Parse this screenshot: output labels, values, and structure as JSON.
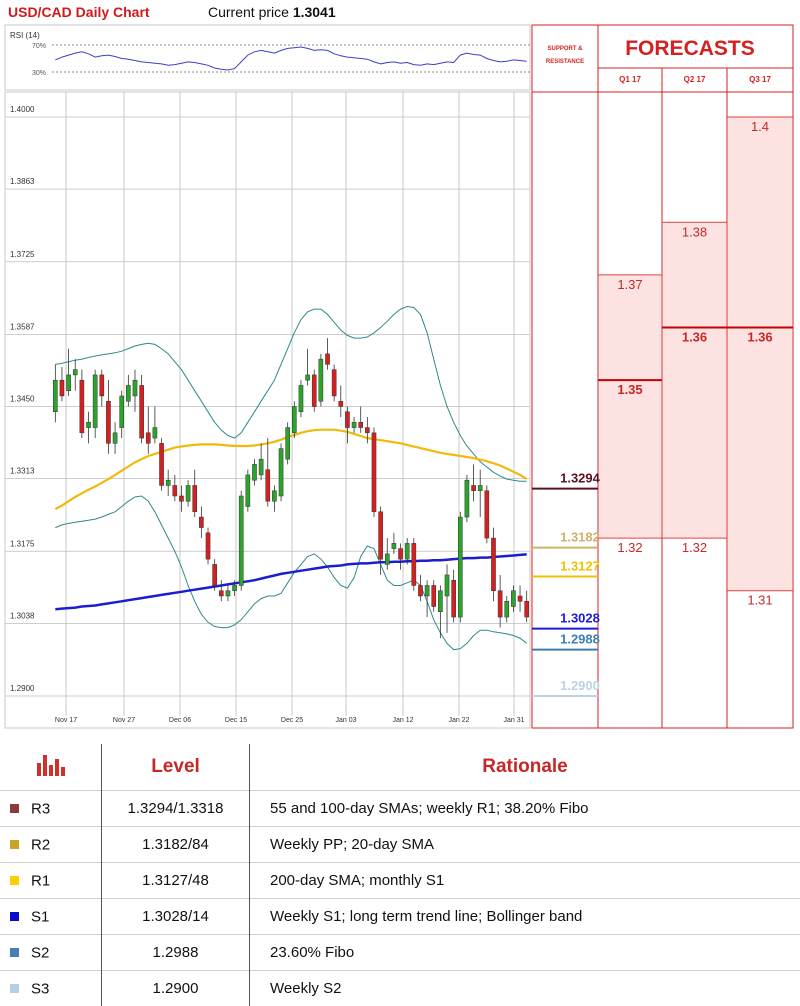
{
  "header": {
    "title": "USD/CAD Daily Chart",
    "current_label": "Current price",
    "current_value": "1.3041"
  },
  "rsi": {
    "label": "RSI (14)",
    "tick_top": "70%",
    "tick_bottom": "30%"
  },
  "forecast_panel": {
    "sr_label": "SUPPORT & RESISTANCE",
    "title": "FORECASTS",
    "quarters": [
      "Q1 17",
      "Q2 17",
      "Q3 17"
    ]
  },
  "chart_data": {
    "type": "candlestick",
    "title": "USD/CAD Daily Chart",
    "y_ticks": [
      "1.4000",
      "1.3863",
      "1.3725",
      "1.3587",
      "1.3450",
      "1.3313",
      "1.3175",
      "1.3038",
      "1.2900"
    ],
    "ylim": [
      1.285,
      1.4
    ],
    "x_ticks": [
      "Nov 17",
      "Nov 27",
      "Dec 06",
      "Dec 15",
      "Dec 25",
      "Jan 03",
      "Jan 12",
      "Jan 22",
      "Jan 31"
    ],
    "grid": true,
    "candles": [
      {
        "o": 1.344,
        "h": 1.353,
        "l": 1.342,
        "c": 1.35
      },
      {
        "o": 1.35,
        "h": 1.3525,
        "l": 1.346,
        "c": 1.347
      },
      {
        "o": 1.348,
        "h": 1.356,
        "l": 1.347,
        "c": 1.351
      },
      {
        "o": 1.351,
        "h": 1.354,
        "l": 1.348,
        "c": 1.352
      },
      {
        "o": 1.35,
        "h": 1.352,
        "l": 1.339,
        "c": 1.34
      },
      {
        "o": 1.341,
        "h": 1.344,
        "l": 1.338,
        "c": 1.342
      },
      {
        "o": 1.341,
        "h": 1.352,
        "l": 1.339,
        "c": 1.351
      },
      {
        "o": 1.351,
        "h": 1.352,
        "l": 1.345,
        "c": 1.347
      },
      {
        "o": 1.346,
        "h": 1.35,
        "l": 1.336,
        "c": 1.338
      },
      {
        "o": 1.338,
        "h": 1.342,
        "l": 1.336,
        "c": 1.34
      },
      {
        "o": 1.341,
        "h": 1.348,
        "l": 1.339,
        "c": 1.347
      },
      {
        "o": 1.346,
        "h": 1.351,
        "l": 1.345,
        "c": 1.349
      },
      {
        "o": 1.347,
        "h": 1.352,
        "l": 1.344,
        "c": 1.35
      },
      {
        "o": 1.349,
        "h": 1.351,
        "l": 1.338,
        "c": 1.339
      },
      {
        "o": 1.34,
        "h": 1.345,
        "l": 1.336,
        "c": 1.338
      },
      {
        "o": 1.339,
        "h": 1.345,
        "l": 1.338,
        "c": 1.341
      },
      {
        "o": 1.338,
        "h": 1.339,
        "l": 1.329,
        "c": 1.33
      },
      {
        "o": 1.33,
        "h": 1.333,
        "l": 1.328,
        "c": 1.331
      },
      {
        "o": 1.33,
        "h": 1.332,
        "l": 1.327,
        "c": 1.328
      },
      {
        "o": 1.328,
        "h": 1.33,
        "l": 1.325,
        "c": 1.327
      },
      {
        "o": 1.327,
        "h": 1.331,
        "l": 1.326,
        "c": 1.33
      },
      {
        "o": 1.33,
        "h": 1.333,
        "l": 1.324,
        "c": 1.325
      },
      {
        "o": 1.324,
        "h": 1.326,
        "l": 1.32,
        "c": 1.322
      },
      {
        "o": 1.321,
        "h": 1.322,
        "l": 1.315,
        "c": 1.316
      },
      {
        "o": 1.315,
        "h": 1.316,
        "l": 1.31,
        "c": 1.311
      },
      {
        "o": 1.31,
        "h": 1.312,
        "l": 1.308,
        "c": 1.309
      },
      {
        "o": 1.309,
        "h": 1.311,
        "l": 1.308,
        "c": 1.31
      },
      {
        "o": 1.31,
        "h": 1.312,
        "l": 1.309,
        "c": 1.311
      },
      {
        "o": 1.311,
        "h": 1.329,
        "l": 1.31,
        "c": 1.328
      },
      {
        "o": 1.326,
        "h": 1.333,
        "l": 1.325,
        "c": 1.332
      },
      {
        "o": 1.331,
        "h": 1.335,
        "l": 1.33,
        "c": 1.334
      },
      {
        "o": 1.332,
        "h": 1.338,
        "l": 1.331,
        "c": 1.335
      },
      {
        "o": 1.333,
        "h": 1.339,
        "l": 1.326,
        "c": 1.327
      },
      {
        "o": 1.327,
        "h": 1.33,
        "l": 1.325,
        "c": 1.329
      },
      {
        "o": 1.328,
        "h": 1.338,
        "l": 1.327,
        "c": 1.337
      },
      {
        "o": 1.335,
        "h": 1.342,
        "l": 1.334,
        "c": 1.341
      },
      {
        "o": 1.34,
        "h": 1.346,
        "l": 1.339,
        "c": 1.345
      },
      {
        "o": 1.344,
        "h": 1.35,
        "l": 1.343,
        "c": 1.349
      },
      {
        "o": 1.35,
        "h": 1.356,
        "l": 1.349,
        "c": 1.351
      },
      {
        "o": 1.351,
        "h": 1.352,
        "l": 1.344,
        "c": 1.345
      },
      {
        "o": 1.346,
        "h": 1.355,
        "l": 1.345,
        "c": 1.354
      },
      {
        "o": 1.355,
        "h": 1.358,
        "l": 1.352,
        "c": 1.353
      },
      {
        "o": 1.352,
        "h": 1.353,
        "l": 1.346,
        "c": 1.347
      },
      {
        "o": 1.346,
        "h": 1.349,
        "l": 1.343,
        "c": 1.345
      },
      {
        "o": 1.344,
        "h": 1.345,
        "l": 1.338,
        "c": 1.341
      },
      {
        "o": 1.341,
        "h": 1.343,
        "l": 1.34,
        "c": 1.342
      },
      {
        "o": 1.342,
        "h": 1.345,
        "l": 1.34,
        "c": 1.341
      },
      {
        "o": 1.341,
        "h": 1.343,
        "l": 1.338,
        "c": 1.34
      },
      {
        "o": 1.34,
        "h": 1.341,
        "l": 1.324,
        "c": 1.325
      },
      {
        "o": 1.325,
        "h": 1.326,
        "l": 1.313,
        "c": 1.316
      },
      {
        "o": 1.315,
        "h": 1.32,
        "l": 1.314,
        "c": 1.317
      },
      {
        "o": 1.318,
        "h": 1.321,
        "l": 1.317,
        "c": 1.319
      },
      {
        "o": 1.318,
        "h": 1.319,
        "l": 1.314,
        "c": 1.316
      },
      {
        "o": 1.316,
        "h": 1.32,
        "l": 1.315,
        "c": 1.319
      },
      {
        "o": 1.319,
        "h": 1.32,
        "l": 1.31,
        "c": 1.311
      },
      {
        "o": 1.311,
        "h": 1.313,
        "l": 1.308,
        "c": 1.309
      },
      {
        "o": 1.309,
        "h": 1.312,
        "l": 1.305,
        "c": 1.311
      },
      {
        "o": 1.311,
        "h": 1.312,
        "l": 1.306,
        "c": 1.307
      },
      {
        "o": 1.306,
        "h": 1.311,
        "l": 1.301,
        "c": 1.31
      },
      {
        "o": 1.309,
        "h": 1.315,
        "l": 1.302,
        "c": 1.313
      },
      {
        "o": 1.312,
        "h": 1.314,
        "l": 1.304,
        "c": 1.305
      },
      {
        "o": 1.305,
        "h": 1.325,
        "l": 1.304,
        "c": 1.324
      },
      {
        "o": 1.324,
        "h": 1.332,
        "l": 1.323,
        "c": 1.331
      },
      {
        "o": 1.33,
        "h": 1.334,
        "l": 1.327,
        "c": 1.329
      },
      {
        "o": 1.329,
        "h": 1.333,
        "l": 1.324,
        "c": 1.33
      },
      {
        "o": 1.329,
        "h": 1.33,
        "l": 1.319,
        "c": 1.32
      },
      {
        "o": 1.32,
        "h": 1.322,
        "l": 1.308,
        "c": 1.31
      },
      {
        "o": 1.31,
        "h": 1.313,
        "l": 1.303,
        "c": 1.305
      },
      {
        "o": 1.305,
        "h": 1.309,
        "l": 1.304,
        "c": 1.308
      },
      {
        "o": 1.307,
        "h": 1.311,
        "l": 1.306,
        "c": 1.31
      },
      {
        "o": 1.309,
        "h": 1.311,
        "l": 1.306,
        "c": 1.308
      },
      {
        "o": 1.308,
        "h": 1.31,
        "l": 1.304,
        "c": 1.305
      }
    ],
    "sma_55_100": [
      1.3255,
      1.3262,
      1.327,
      1.3278,
      1.3285,
      1.3292,
      1.3298,
      1.3305,
      1.3312,
      1.332,
      1.3328,
      1.3336,
      1.3344,
      1.335,
      1.3356,
      1.336,
      1.3364,
      1.3368,
      1.3372,
      1.3374,
      1.3376,
      1.3377,
      1.3378,
      1.3378,
      1.3378,
      1.3377,
      1.3376,
      1.3375,
      1.3375,
      1.3375,
      1.3376,
      1.3378,
      1.338,
      1.3383,
      1.3387,
      1.3392,
      1.3396,
      1.34,
      1.3403,
      1.3405,
      1.3406,
      1.3406,
      1.3406,
      1.3404,
      1.3402,
      1.3398,
      1.3394,
      1.339,
      1.3388,
      1.3386,
      1.3384,
      1.3382,
      1.338,
      1.3377,
      1.3374,
      1.3371,
      1.3368,
      1.3365,
      1.3362,
      1.336,
      1.3358,
      1.3356,
      1.3354,
      1.3352,
      1.3349,
      1.3346,
      1.3342,
      1.3338,
      1.3332,
      1.3326,
      1.332,
      1.3312
    ],
    "sma_200": [
      1.3065,
      1.3066,
      1.3067,
      1.3068,
      1.307,
      1.3071,
      1.3072,
      1.3074,
      1.3076,
      1.3078,
      1.308,
      1.3082,
      1.3084,
      1.3086,
      1.3088,
      1.309,
      1.3092,
      1.3094,
      1.3096,
      1.3098,
      1.31,
      1.3102,
      1.3104,
      1.3106,
      1.3108,
      1.311,
      1.3112,
      1.3114,
      1.3116,
      1.3118,
      1.312,
      1.3123,
      1.3126,
      1.3129,
      1.3132,
      1.3134,
      1.3136,
      1.3138,
      1.314,
      1.3142,
      1.3144,
      1.3146,
      1.3147,
      1.3148,
      1.315,
      1.3151,
      1.3152,
      1.3152,
      1.3153,
      1.3154,
      1.3154,
      1.3155,
      1.3155,
      1.3156,
      1.3156,
      1.3157,
      1.3157,
      1.3158,
      1.3158,
      1.3159,
      1.316,
      1.3161,
      1.3162,
      1.3162,
      1.3163,
      1.3163,
      1.3164,
      1.3165,
      1.3166,
      1.3167,
      1.3168,
      1.3169
    ],
    "bb_upper": [
      1.353,
      1.3532,
      1.3535,
      1.3538,
      1.354,
      1.3543,
      1.3546,
      1.3548,
      1.355,
      1.3552,
      1.3555,
      1.356,
      1.3565,
      1.3568,
      1.357,
      1.3568,
      1.356,
      1.355,
      1.3535,
      1.352,
      1.35,
      1.348,
      1.346,
      1.344,
      1.342,
      1.3405,
      1.3395,
      1.339,
      1.34,
      1.342,
      1.344,
      1.346,
      1.348,
      1.35,
      1.353,
      1.356,
      1.359,
      1.3615,
      1.363,
      1.3635,
      1.3635,
      1.3625,
      1.361,
      1.3595,
      1.3585,
      1.358,
      1.358,
      1.3582,
      1.359,
      1.36,
      1.3612,
      1.3625,
      1.3635,
      1.364,
      1.3638,
      1.3625,
      1.359,
      1.354,
      1.349,
      1.345,
      1.342,
      1.3395,
      1.3375,
      1.336,
      1.3345,
      1.3335,
      1.3325,
      1.3318,
      1.3312,
      1.331,
      1.3308,
      1.3308
    ],
    "bb_lower": [
      1.322,
      1.3225,
      1.3228,
      1.323,
      1.3232,
      1.3234,
      1.3236,
      1.324,
      1.3245,
      1.325,
      1.326,
      1.327,
      1.3278,
      1.328,
      1.327,
      1.325,
      1.3225,
      1.32,
      1.3175,
      1.3145,
      1.311,
      1.308,
      1.3055,
      1.304,
      1.3032,
      1.303,
      1.303,
      1.3035,
      1.3045,
      1.306,
      1.3075,
      1.3085,
      1.309,
      1.309,
      1.3095,
      1.3115,
      1.3135,
      1.315,
      1.3165,
      1.317,
      1.316,
      1.3145,
      1.3125,
      1.311,
      1.3105,
      1.3125,
      1.3165,
      1.3185,
      1.318,
      1.315,
      1.312,
      1.311,
      1.311,
      1.3115,
      1.312,
      1.311,
      1.308,
      1.3045,
      1.302,
      1.3,
      1.2988,
      1.299,
      1.3,
      1.3015,
      1.3025,
      1.3025,
      1.3022,
      1.302,
      1.3018,
      1.3015,
      1.301,
      1.3
    ],
    "support_resistance": [
      {
        "label": "1.3294",
        "value": 1.3294,
        "color": "#5a1020"
      },
      {
        "label": "1.3182",
        "value": 1.3182,
        "color": "#d2b06a"
      },
      {
        "label": "1.3127",
        "value": 1.3127,
        "color": "#f2c200"
      },
      {
        "label": "1.3028",
        "value": 1.3028,
        "color": "#1b1bd6"
      },
      {
        "label": "1.2988",
        "value": 1.2988,
        "color": "#3a7fb0"
      },
      {
        "label": "1.2900",
        "value": 1.29,
        "color": "#b8d4e4"
      }
    ],
    "forecasts": [
      {
        "quarter": "Q1 17",
        "levels": [
          {
            "label": "1.37",
            "value": 1.37
          },
          {
            "label": "1.35",
            "value": 1.35,
            "bold": true
          },
          {
            "label": "1.32",
            "value": 1.32
          }
        ]
      },
      {
        "quarter": "Q2 17",
        "levels": [
          {
            "label": "1.38",
            "value": 1.38
          },
          {
            "label": "1.36",
            "value": 1.36,
            "bold": true
          },
          {
            "label": "1.32",
            "value": 1.32
          }
        ]
      },
      {
        "quarter": "Q3 17",
        "levels": [
          {
            "label": "1.4",
            "value": 1.4
          },
          {
            "label": "1.36",
            "value": 1.36,
            "bold": true
          },
          {
            "label": "1.31",
            "value": 1.31
          }
        ]
      }
    ],
    "rsi_values": [
      48,
      52,
      55,
      58,
      60,
      57,
      52,
      54,
      55,
      53,
      50,
      49,
      47,
      45,
      44,
      43,
      42,
      40,
      41,
      43,
      45,
      44,
      42,
      40,
      36,
      34,
      33,
      35,
      45,
      55,
      60,
      62,
      60,
      58,
      62,
      65,
      66,
      67,
      65,
      62,
      63,
      62,
      57,
      54,
      52,
      51,
      50,
      49,
      45,
      42,
      44,
      45,
      43,
      44,
      41,
      40,
      42,
      41,
      43,
      45,
      44,
      55,
      58,
      56,
      55,
      50,
      47,
      45,
      46,
      48,
      47,
      46
    ]
  },
  "levels_table": {
    "headers": [
      "Level",
      "Rationale"
    ],
    "rows": [
      {
        "tag": "R3",
        "color": "#8b3a3a",
        "level": "1.3294/1.3318",
        "rationale": "55 and 100-day SMAs; weekly R1; 38.20% Fibo"
      },
      {
        "tag": "R2",
        "color": "#c9a227",
        "level": "1.3182/84",
        "rationale": "Weekly PP; 20-day SMA"
      },
      {
        "tag": "R1",
        "color": "#ffcc00",
        "level": "1.3127/48",
        "rationale": "200-day SMA; monthly S1"
      },
      {
        "tag": "S1",
        "color": "#0a0acb",
        "level": "1.3028/14",
        "rationale": "Weekly S1; long term trend line; Bollinger band"
      },
      {
        "tag": "S2",
        "color": "#4a7fb0",
        "level": "1.2988",
        "rationale": "23.60% Fibo"
      },
      {
        "tag": "S3",
        "color": "#b5d0e2",
        "level": "1.2900",
        "rationale": "Weekly S2"
      }
    ]
  }
}
